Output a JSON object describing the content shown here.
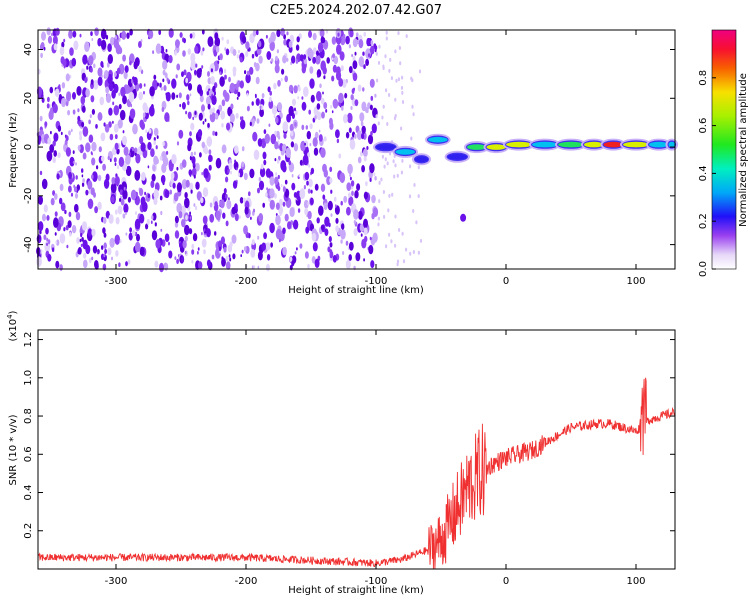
{
  "title": "C2E5.2024.202.07.42.G07",
  "chart_data": [
    {
      "type": "heatmap",
      "xlabel": "Height of straight line (km)",
      "ylabel": "Frequency (Hz)",
      "xlim": [
        -360,
        130
      ],
      "ylim": [
        -50,
        48
      ],
      "x_ticks": [
        -300,
        -200,
        -100,
        0,
        100
      ],
      "y_ticks": [
        -40,
        -20,
        0,
        20,
        40
      ],
      "noise_region_x": [
        -360,
        -100
      ],
      "signal_track": [
        {
          "x": -100,
          "f": 0,
          "a": 0.35
        },
        {
          "x": -85,
          "f": -2,
          "a": 0.45
        },
        {
          "x": -70,
          "f": -5,
          "a": 0.4
        },
        {
          "x": -60,
          "f": 3,
          "a": 0.45
        },
        {
          "x": -45,
          "f": -4,
          "a": 0.35
        },
        {
          "x": -30,
          "f": 0,
          "a": 0.55
        },
        {
          "x": -15,
          "f": 0,
          "a": 0.7
        },
        {
          "x": 0,
          "f": 1,
          "a": 0.75
        },
        {
          "x": 20,
          "f": 1,
          "a": 0.5
        },
        {
          "x": 40,
          "f": 1,
          "a": 0.55
        },
        {
          "x": 60,
          "f": 1,
          "a": 0.75
        },
        {
          "x": 75,
          "f": 1,
          "a": 0.85
        },
        {
          "x": 90,
          "f": 1,
          "a": 0.7
        },
        {
          "x": 110,
          "f": 1,
          "a": 0.5
        },
        {
          "x": 125,
          "f": 1,
          "a": 0.45
        }
      ],
      "colorbar": {
        "label": "Normalized spectral amplitude",
        "range": [
          0,
          1
        ],
        "ticks": [
          "0.0",
          "0.2",
          "0.4",
          "0.6",
          "0.8"
        ]
      }
    },
    {
      "type": "line",
      "xlabel": "Height of straight line (km)",
      "ylabel": "SNR (10 * v/v)",
      "y_multiplier": "(x10",
      "y_multiplier_exp": "4",
      "y_multiplier_close": ")",
      "xlim": [
        -360,
        130
      ],
      "ylim": [
        0,
        1.25
      ],
      "x_ticks": [
        -300,
        -200,
        -100,
        0,
        100
      ],
      "y_ticks": [
        "0.2",
        "0.4",
        "0.6",
        "0.8",
        "1.0",
        "1.2"
      ],
      "series": [
        {
          "color": "#f03030",
          "x": [
            -360,
            -300,
            -200,
            -100,
            -80,
            -60,
            -50,
            -40,
            -30,
            -20,
            -10,
            0,
            10,
            20,
            30,
            40,
            50,
            60,
            70,
            80,
            90,
            100,
            105,
            110,
            120,
            130
          ],
          "y": [
            0.06,
            0.06,
            0.06,
            0.03,
            0.05,
            0.1,
            0.15,
            0.28,
            0.42,
            0.5,
            0.55,
            0.58,
            0.6,
            0.62,
            0.66,
            0.7,
            0.74,
            0.75,
            0.76,
            0.76,
            0.74,
            0.72,
            0.75,
            0.78,
            0.8,
            0.82
          ]
        }
      ]
    }
  ]
}
